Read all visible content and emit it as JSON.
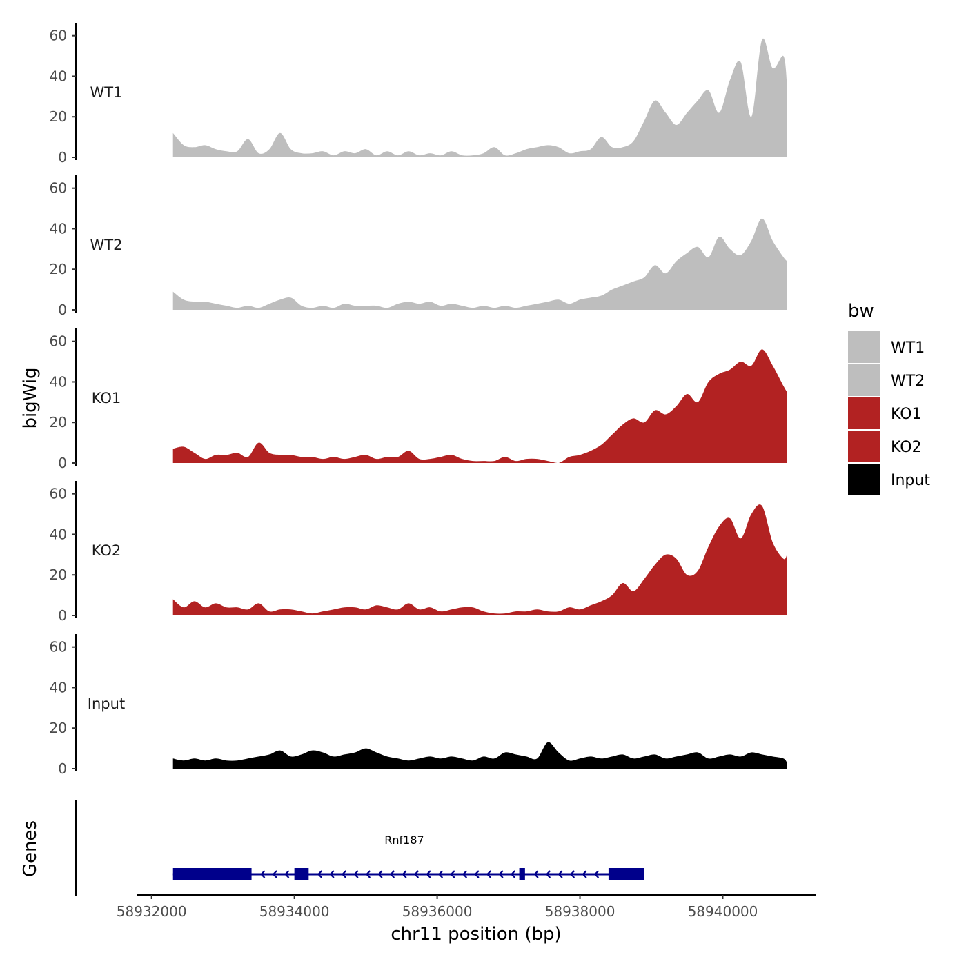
{
  "chart_data": {
    "type": "area",
    "ylabel": "bigWig",
    "xlabel": "chr11 position (bp)",
    "xlim": [
      58931800,
      58941300
    ],
    "ylim": [
      0,
      65
    ],
    "y_ticks": [
      0,
      20,
      40,
      60
    ],
    "x_ticks": [
      58932000,
      58934000,
      58936000,
      58938000,
      58940000
    ],
    "x_tick_labels": [
      "58932000",
      "58934000",
      "58936000",
      "58938000",
      "58940000"
    ],
    "legend": {
      "title": "bw",
      "position": "right",
      "items": [
        {
          "label": "WT1",
          "color": "#BEBEBE"
        },
        {
          "label": "WT2",
          "color": "#BEBEBE"
        },
        {
          "label": "KO1",
          "color": "#B22222"
        },
        {
          "label": "KO2",
          "color": "#B22222"
        },
        {
          "label": "Input",
          "color": "#000000"
        }
      ]
    },
    "x": [
      58932300,
      58932450,
      58932600,
      58932750,
      58932900,
      58933050,
      58933200,
      58933350,
      58933500,
      58933650,
      58933800,
      58933950,
      58934100,
      58934250,
      58934400,
      58934550,
      58934700,
      58934850,
      58935000,
      58935150,
      58935300,
      58935450,
      58935600,
      58935750,
      58935900,
      58936050,
      58936200,
      58936350,
      58936500,
      58936650,
      58936800,
      58936950,
      58937100,
      58937250,
      58937400,
      58937550,
      58937700,
      58937850,
      58938000,
      58938150,
      58938300,
      58938450,
      58938600,
      58938750,
      58938900,
      58939050,
      58939200,
      58939350,
      58939500,
      58939650,
      58939800,
      58939950,
      58940100,
      58940250,
      58940400,
      58940550,
      58940700,
      58940850,
      58940900
    ],
    "series": [
      {
        "name": "WT1",
        "color": "#BEBEBE",
        "values": [
          12,
          6,
          5,
          6,
          4,
          3,
          3,
          9,
          2,
          4,
          12,
          4,
          2,
          2,
          3,
          1,
          3,
          2,
          4,
          1,
          3,
          1,
          3,
          1,
          2,
          1,
          3,
          1,
          1,
          2,
          5,
          1,
          2,
          4,
          5,
          6,
          5,
          2,
          3,
          4,
          10,
          5,
          5,
          8,
          18,
          28,
          22,
          16,
          22,
          28,
          33,
          22,
          38,
          47,
          20,
          58,
          44,
          50,
          36
        ]
      },
      {
        "name": "WT2",
        "color": "#BEBEBE",
        "values": [
          9,
          5,
          4,
          4,
          3,
          2,
          1,
          2,
          1,
          3,
          5,
          6,
          2,
          1,
          2,
          1,
          3,
          2,
          2,
          2,
          1,
          3,
          4,
          3,
          4,
          2,
          3,
          2,
          1,
          2,
          1,
          2,
          1,
          2,
          3,
          4,
          5,
          3,
          5,
          6,
          7,
          10,
          12,
          14,
          16,
          22,
          18,
          24,
          28,
          31,
          26,
          36,
          30,
          27,
          34,
          45,
          34,
          26,
          24
        ]
      },
      {
        "name": "KO1",
        "color": "#B22222",
        "values": [
          7,
          8,
          5,
          2,
          4,
          4,
          5,
          3,
          10,
          5,
          4,
          4,
          3,
          3,
          2,
          3,
          2,
          3,
          4,
          2,
          3,
          3,
          6,
          2,
          2,
          3,
          4,
          2,
          1,
          1,
          1,
          3,
          1,
          2,
          2,
          1,
          0,
          3,
          4,
          6,
          9,
          14,
          19,
          22,
          20,
          26,
          24,
          28,
          34,
          30,
          40,
          44,
          46,
          50,
          48,
          56,
          48,
          38,
          35
        ]
      },
      {
        "name": "KO2",
        "color": "#B22222",
        "values": [
          8,
          4,
          7,
          4,
          6,
          4,
          4,
          3,
          6,
          2,
          3,
          3,
          2,
          1,
          2,
          3,
          4,
          4,
          3,
          5,
          4,
          3,
          6,
          3,
          4,
          2,
          3,
          4,
          4,
          2,
          1,
          1,
          2,
          2,
          3,
          2,
          2,
          4,
          3,
          5,
          7,
          10,
          16,
          12,
          18,
          25,
          30,
          28,
          20,
          22,
          34,
          44,
          48,
          38,
          50,
          54,
          36,
          28,
          30
        ]
      },
      {
        "name": "Input",
        "color": "#000000",
        "values": [
          5,
          4,
          5,
          4,
          5,
          4,
          4,
          5,
          6,
          7,
          9,
          6,
          7,
          9,
          8,
          6,
          7,
          8,
          10,
          8,
          6,
          5,
          4,
          5,
          6,
          5,
          6,
          5,
          4,
          6,
          5,
          8,
          7,
          6,
          5,
          13,
          8,
          4,
          5,
          6,
          5,
          6,
          7,
          5,
          6,
          7,
          5,
          6,
          7,
          8,
          5,
          6,
          7,
          6,
          8,
          7,
          6,
          5,
          3
        ]
      }
    ],
    "genes": [
      {
        "name": "Rnf187",
        "start": 58932300,
        "end": 58938900,
        "strand": "-",
        "exons": [
          [
            58932300,
            58933400
          ],
          [
            58934000,
            58934200
          ],
          [
            58937150,
            58937230
          ],
          [
            58938400,
            58938900
          ]
        ]
      }
    ],
    "gene_panel_title": "Genes"
  }
}
